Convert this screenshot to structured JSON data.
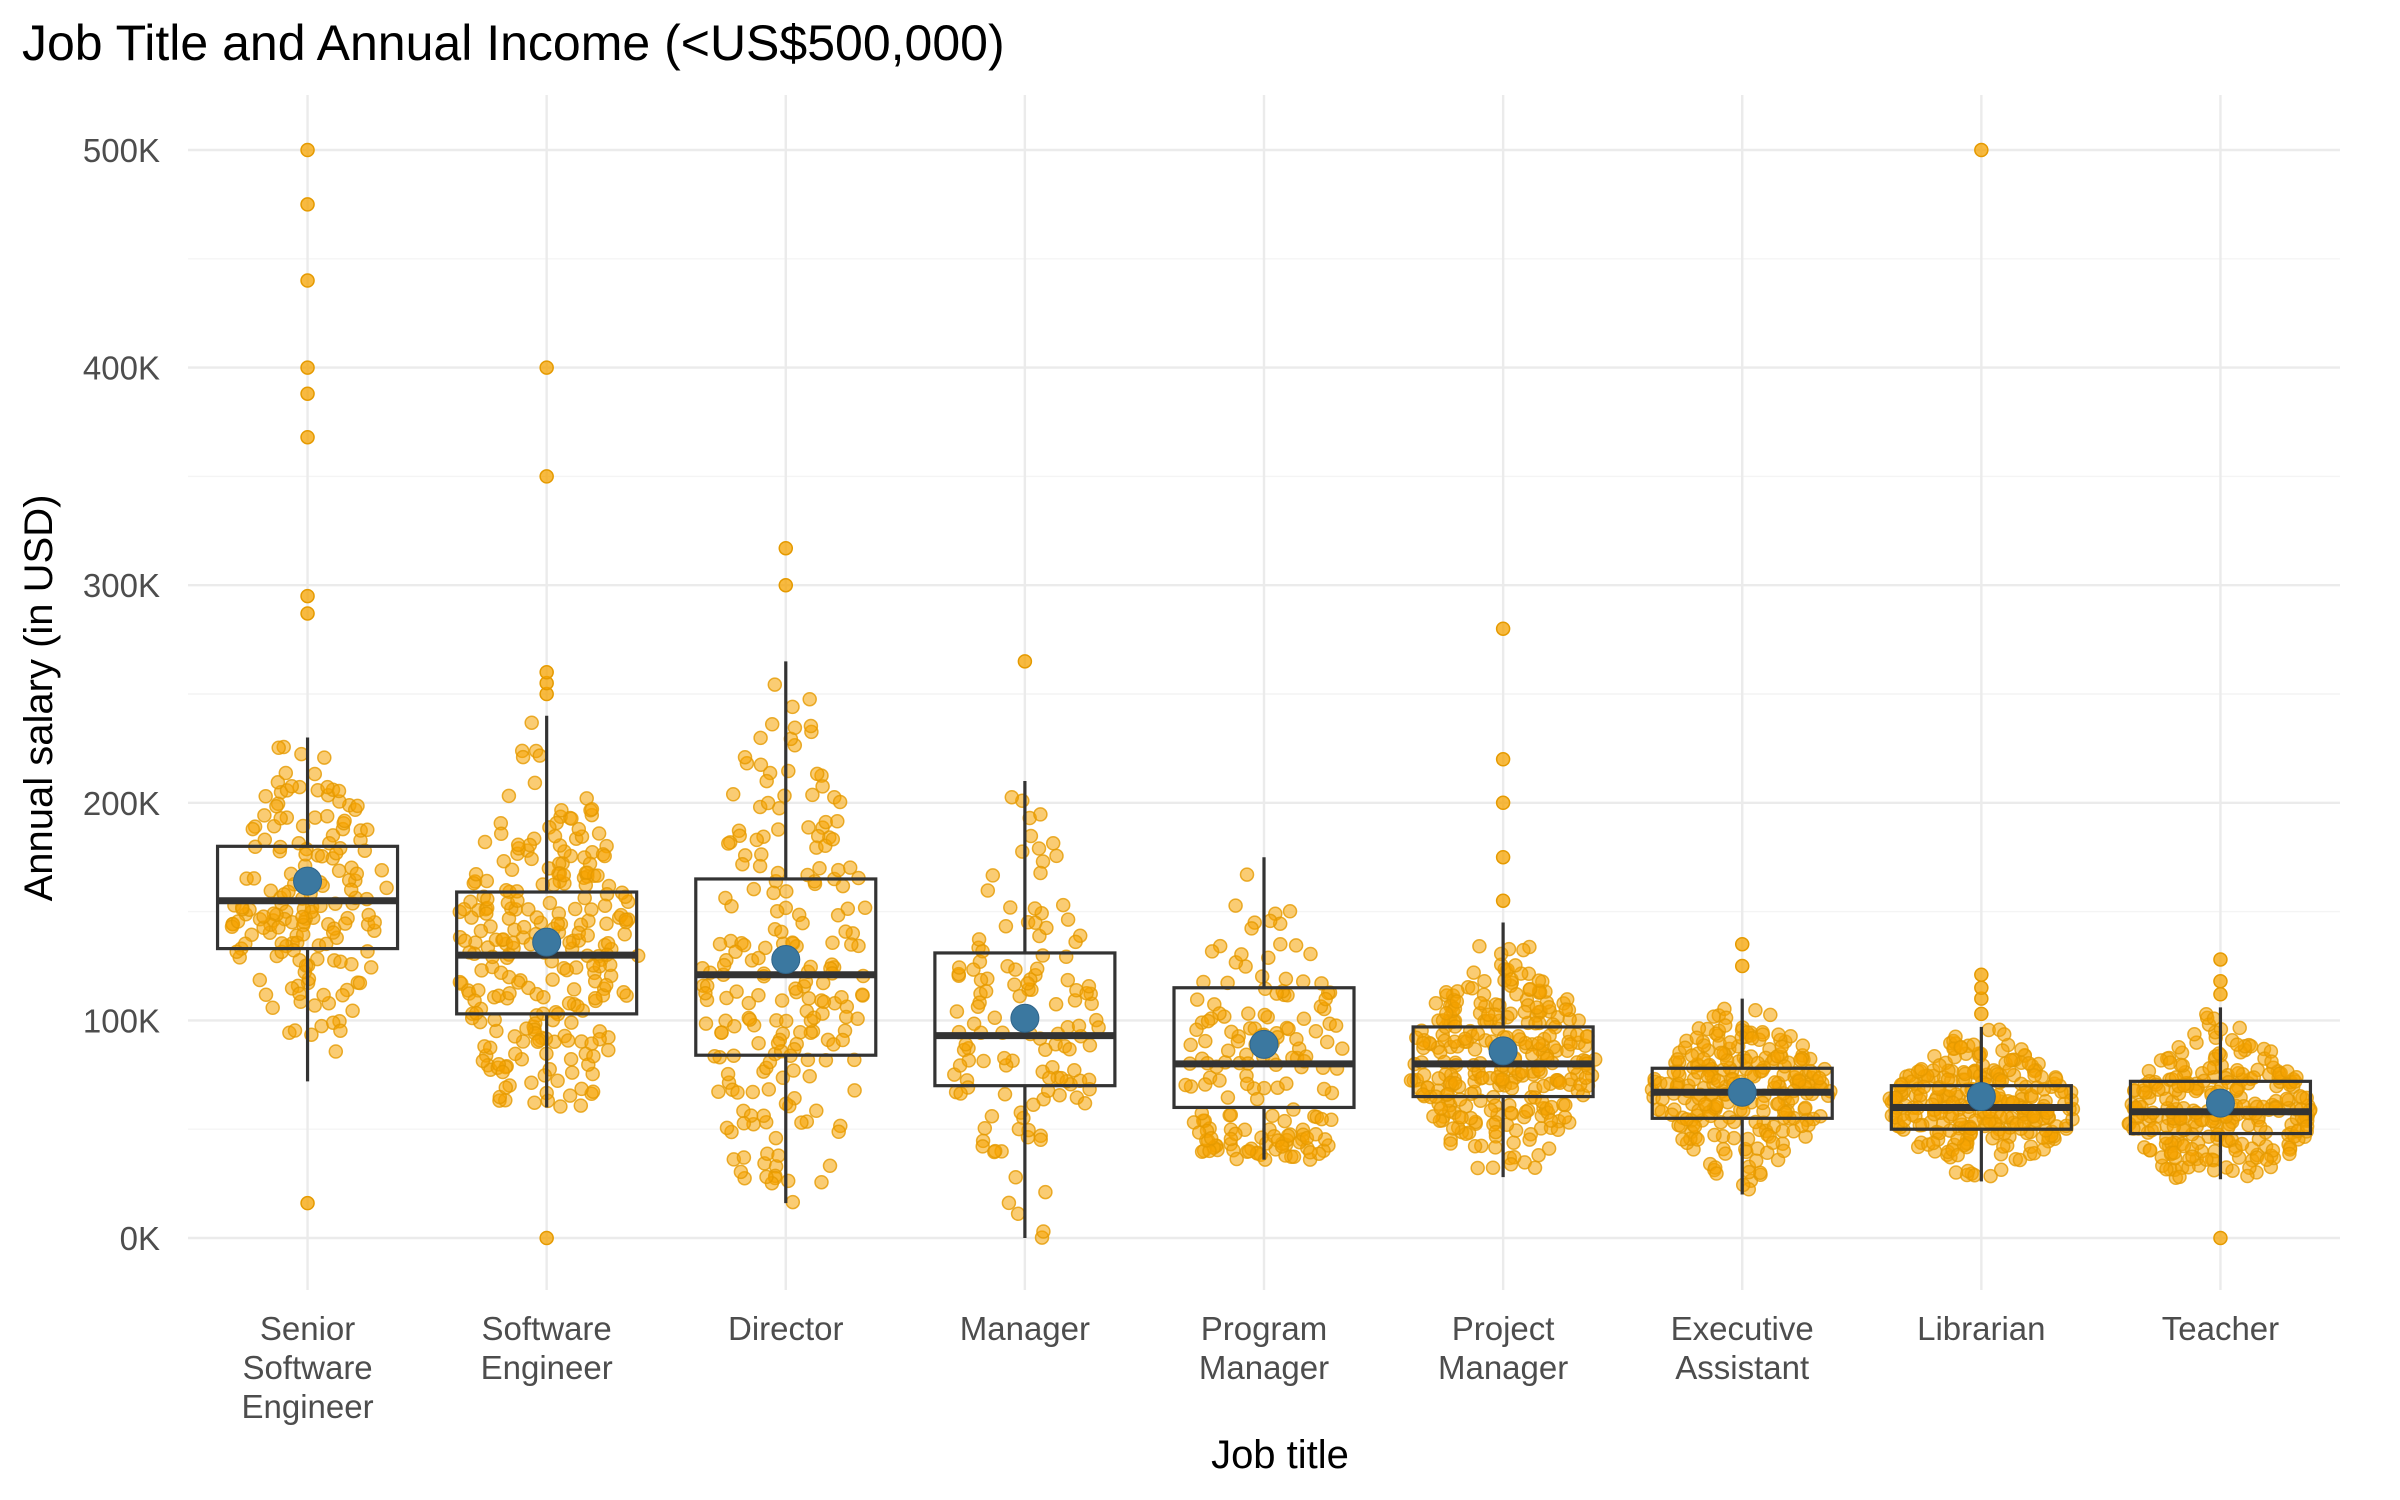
{
  "chart_data": {
    "type": "box",
    "title": "Job Title and Annual Income (<US$500,000)",
    "xlabel": "Job title",
    "ylabel": "Annual salary (in USD)",
    "ylim": [
      -25000,
      520000
    ],
    "y_ticks": [
      0,
      100000,
      200000,
      300000,
      400000,
      500000
    ],
    "y_tick_labels": [
      "0K",
      "100K",
      "200K",
      "300K",
      "400K",
      "500K"
    ],
    "grid": true,
    "legend": "none",
    "colors": {
      "points": "#f5a300",
      "mean": "#3b78a0",
      "box": "#333333"
    },
    "categories": [
      {
        "label": [
          "Senior",
          "Software",
          "Engineer"
        ],
        "q1": 133000,
        "median": 155000,
        "q3": 180000,
        "whisker_low": 72000,
        "whisker_high": 230000,
        "mean": 164000,
        "n_points": 170,
        "outliers": [
          16000,
          287000,
          295000,
          368000,
          388000,
          400000,
          440000,
          475000,
          500000
        ]
      },
      {
        "label": [
          "Software",
          "Engineer"
        ],
        "q1": 103000,
        "median": 130000,
        "q3": 159000,
        "whisker_low": 60000,
        "whisker_high": 240000,
        "mean": 136000,
        "n_points": 260,
        "outliers": [
          0,
          250000,
          255000,
          260000,
          350000,
          400000
        ]
      },
      {
        "label": [
          "Director"
        ],
        "q1": 84000,
        "median": 121000,
        "q3": 165000,
        "whisker_low": 16000,
        "whisker_high": 265000,
        "mean": 128000,
        "n_points": 210,
        "outliers": [
          300000,
          317000
        ]
      },
      {
        "label": [
          "Manager"
        ],
        "q1": 70000,
        "median": 93000,
        "q3": 131000,
        "whisker_low": 0,
        "whisker_high": 210000,
        "mean": 101000,
        "n_points": 130,
        "outliers": [
          265000
        ]
      },
      {
        "label": [
          "Program",
          "Manager"
        ],
        "q1": 60000,
        "median": 80000,
        "q3": 115000,
        "whisker_low": 36000,
        "whisker_high": 175000,
        "mean": 89000,
        "n_points": 170,
        "outliers": []
      },
      {
        "label": [
          "Project",
          "Manager"
        ],
        "q1": 65000,
        "median": 80000,
        "q3": 97000,
        "whisker_low": 28000,
        "whisker_high": 145000,
        "mean": 86000,
        "n_points": 300,
        "outliers": [
          155000,
          175000,
          200000,
          220000,
          280000
        ]
      },
      {
        "label": [
          "Executive",
          "Assistant"
        ],
        "q1": 55000,
        "median": 67000,
        "q3": 78000,
        "whisker_low": 20000,
        "whisker_high": 110000,
        "mean": 67000,
        "n_points": 250,
        "outliers": [
          125000,
          135000
        ]
      },
      {
        "label": [
          "Librarian"
        ],
        "q1": 50000,
        "median": 60000,
        "q3": 70000,
        "whisker_low": 26000,
        "whisker_high": 97000,
        "mean": 65000,
        "n_points": 280,
        "outliers": [
          103000,
          110000,
          115000,
          121000,
          500000
        ]
      },
      {
        "label": [
          "Teacher"
        ],
        "q1": 48000,
        "median": 58000,
        "q3": 72000,
        "whisker_low": 27000,
        "whisker_high": 106000,
        "mean": 62000,
        "n_points": 280,
        "outliers": [
          0,
          112000,
          118000,
          128000
        ]
      }
    ]
  }
}
